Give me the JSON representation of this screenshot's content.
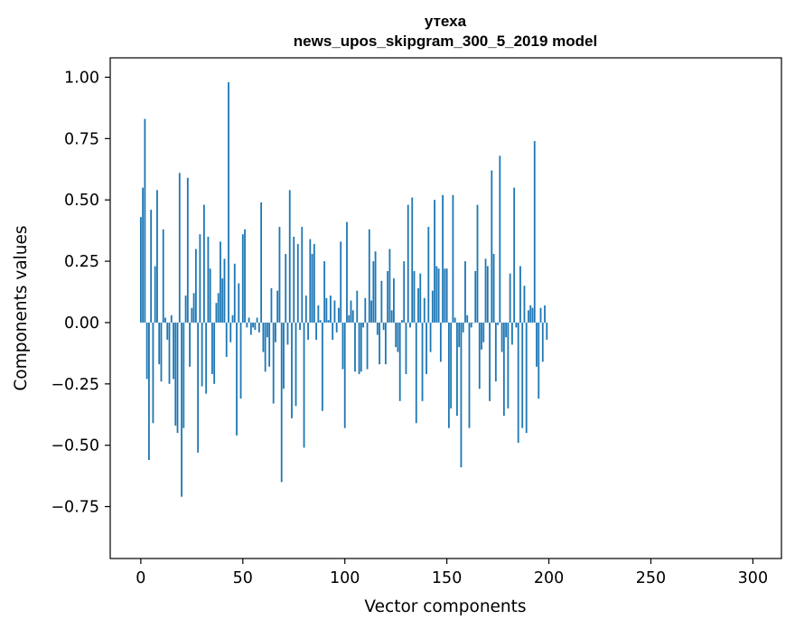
{
  "chart_data": {
    "type": "bar",
    "title_lines": [
      "утеха",
      "news_upos_skipgram_300_5_2019 model"
    ],
    "xlabel": "Vector components",
    "ylabel": "Components values",
    "xlim": [
      -15,
      314
    ],
    "ylim": [
      -0.9617,
      1.0791
    ],
    "xticks": [
      0,
      50,
      100,
      150,
      200,
      250,
      300
    ],
    "xtick_labels": [
      "0",
      "50",
      "100",
      "150",
      "200",
      "250",
      "300"
    ],
    "yticks": [
      -0.75,
      -0.5,
      -0.25,
      0.0,
      0.25,
      0.5,
      0.75,
      1.0
    ],
    "ytick_labels": [
      "−0.75",
      "−0.50",
      "−0.25",
      "0.00",
      "0.25",
      "0.50",
      "0.75",
      "1.00"
    ],
    "grid": false,
    "color": "#1f77b4",
    "values": [
      0.43,
      0.55,
      0.83,
      -0.23,
      -0.56,
      0.46,
      -0.41,
      0.23,
      0.54,
      -0.17,
      -0.24,
      0.38,
      0.02,
      -0.07,
      -0.25,
      0.03,
      -0.23,
      -0.42,
      -0.45,
      0.61,
      -0.71,
      -0.43,
      0.11,
      0.59,
      -0.18,
      0.06,
      0.12,
      0.3,
      -0.53,
      0.36,
      -0.26,
      0.48,
      -0.29,
      0.35,
      0.22,
      -0.21,
      -0.25,
      0.08,
      0.12,
      0.33,
      0.18,
      0.26,
      -0.14,
      0.98,
      -0.08,
      0.03,
      0.24,
      -0.46,
      0.16,
      -0.31,
      0.36,
      0.38,
      -0.02,
      0.02,
      -0.05,
      -0.02,
      -0.03,
      0.02,
      -0.04,
      0.49,
      -0.12,
      -0.2,
      -0.06,
      -0.18,
      0.14,
      -0.33,
      -0.08,
      0.13,
      0.39,
      -0.65,
      -0.27,
      0.28,
      -0.09,
      0.54,
      -0.39,
      0.35,
      -0.34,
      0.32,
      -0.03,
      0.39,
      -0.51,
      0.11,
      -0.07,
      0.34,
      0.28,
      0.32,
      -0.07,
      0.07,
      0.01,
      -0.36,
      0.25,
      0.1,
      0.01,
      0.11,
      -0.07,
      0.09,
      -0.04,
      0.06,
      0.33,
      -0.19,
      -0.43,
      0.41,
      0.03,
      0.09,
      0.05,
      -0.2,
      0.13,
      -0.21,
      -0.2,
      -0.02,
      0.1,
      -0.19,
      0.38,
      0.09,
      0.25,
      0.29,
      -0.05,
      -0.17,
      0.17,
      -0.03,
      -0.17,
      0.21,
      0.3,
      0.05,
      0.18,
      -0.1,
      -0.12,
      -0.32,
      0.01,
      0.25,
      -0.21,
      0.48,
      -0.02,
      0.51,
      0.21,
      -0.41,
      0.14,
      0.2,
      -0.32,
      0.1,
      -0.21,
      0.39,
      -0.12,
      0.13,
      0.5,
      0.23,
      0.22,
      -0.16,
      0.52,
      0.22,
      0.22,
      -0.43,
      -0.35,
      0.52,
      0.02,
      -0.38,
      -0.1,
      -0.59,
      -0.04,
      0.25,
      0.03,
      -0.43,
      -0.02,
      0.0,
      0.21,
      0.48,
      -0.27,
      -0.11,
      -0.08,
      0.26,
      0.23,
      -0.32,
      0.62,
      0.28,
      -0.24,
      -0.01,
      0.68,
      -0.12,
      -0.38,
      -0.06,
      -0.35,
      0.2,
      -0.09,
      0.55,
      -0.02,
      -0.49,
      0.23,
      -0.43,
      0.15,
      -0.45,
      0.05,
      0.07,
      0.06,
      0.74,
      -0.18,
      -0.31,
      0.06,
      -0.16,
      0.07,
      -0.07
    ]
  }
}
